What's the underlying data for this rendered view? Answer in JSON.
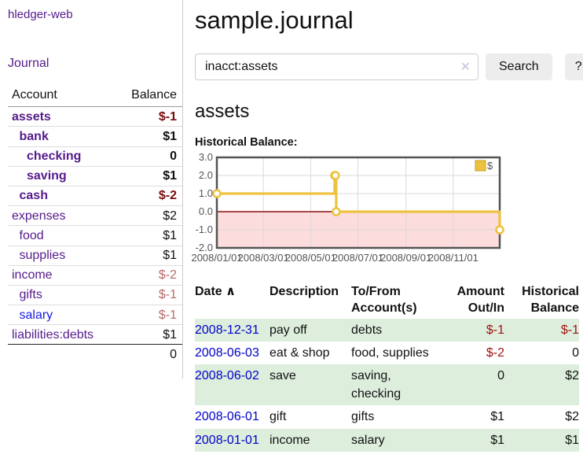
{
  "app": {
    "title": "hledger-web",
    "nav_journal": "Journal"
  },
  "sidebar": {
    "header": {
      "account": "Account",
      "balance": "Balance"
    },
    "accounts": [
      {
        "name": "assets",
        "depth": 1,
        "bold": true,
        "balance": "$-1",
        "neg": "neg-dark"
      },
      {
        "name": "bank",
        "depth": 2,
        "bold": true,
        "balance": "$1",
        "neg": ""
      },
      {
        "name": "checking",
        "depth": 3,
        "bold": true,
        "balance": "0",
        "neg": ""
      },
      {
        "name": "saving",
        "depth": 3,
        "bold": true,
        "balance": "$1",
        "neg": ""
      },
      {
        "name": "cash",
        "depth": 2,
        "bold": true,
        "balance": "$-2",
        "neg": "neg-dark"
      },
      {
        "name": "expenses",
        "depth": 1,
        "bold": false,
        "balance": "$2",
        "neg": ""
      },
      {
        "name": "food",
        "depth": 2,
        "bold": false,
        "balance": "$1",
        "neg": ""
      },
      {
        "name": "supplies",
        "depth": 2,
        "bold": false,
        "balance": "$1",
        "neg": ""
      },
      {
        "name": "income",
        "depth": 1,
        "bold": false,
        "balance": "$-2",
        "neg": "neg-light"
      },
      {
        "name": "gifts",
        "depth": 2,
        "bold": false,
        "balance": "$-1",
        "neg": "neg-light"
      },
      {
        "name": "salary",
        "depth": 2,
        "bold": false,
        "balance": "$-1",
        "neg": "neg-light",
        "link_color": "#1a1ae6"
      },
      {
        "name": "liabilities:debts",
        "depth": 1,
        "bold": false,
        "balance": "$1",
        "neg": ""
      }
    ],
    "total": "0"
  },
  "main": {
    "title": "sample.journal",
    "search": {
      "value": "inacct:assets",
      "clear_icon": "✕",
      "button_label": "Search",
      "help_label": "?"
    },
    "account_heading": "assets",
    "chart_label": "Historical Balance:"
  },
  "chart_data": {
    "type": "line",
    "step": true,
    "title": "Historical Balance",
    "legend": "$",
    "legend_position": "top-right",
    "grid": true,
    "series": [
      {
        "name": "$",
        "color": "#edc240",
        "points": [
          [
            "2008-01-01",
            1
          ],
          [
            "2008-06-01",
            2
          ],
          [
            "2008-06-02",
            2
          ],
          [
            "2008-06-03",
            0
          ],
          [
            "2008-12-31",
            -1
          ]
        ]
      }
    ],
    "x_range": [
      "2008-01-01",
      "2008-12-31"
    ],
    "x_ticks": [
      "2008/01/01",
      "2008/03/01",
      "2008/05/01",
      "2008/07/01",
      "2008/09/01",
      "2008/11/01"
    ],
    "y_ticks": [
      3.0,
      2.0,
      1.0,
      0.0,
      -1.0,
      -2.0
    ],
    "ylim": [
      -2,
      3
    ],
    "zero_line_color": "#8f1010",
    "negative_fill": "#fcdcdc"
  },
  "register": {
    "headers": {
      "date": "Date",
      "sort_icon": "∧",
      "description": "Description",
      "accounts": "To/From Account(s)",
      "amount": "Amount Out/In",
      "balance": "Historical Balance"
    },
    "rows": [
      {
        "date": "2008-12-31",
        "description": "pay off",
        "accounts": "debts",
        "amount": "$-1",
        "amount_class": "neg",
        "balance": "$-1",
        "balance_class": "neg"
      },
      {
        "date": "2008-06-03",
        "description": "eat & shop",
        "accounts": "food, supplies",
        "amount": "$-2",
        "amount_class": "neg",
        "balance": "0",
        "balance_class": ""
      },
      {
        "date": "2008-06-02",
        "description": "save",
        "accounts": "saving, checking",
        "amount": "0",
        "amount_class": "",
        "balance": "$2",
        "balance_class": ""
      },
      {
        "date": "2008-06-01",
        "description": "gift",
        "accounts": "gifts",
        "amount": "$1",
        "amount_class": "",
        "balance": "$2",
        "balance_class": ""
      },
      {
        "date": "2008-01-01",
        "description": "income",
        "accounts": "salary",
        "amount": "$1",
        "amount_class": "",
        "balance": "$1",
        "balance_class": ""
      }
    ]
  }
}
